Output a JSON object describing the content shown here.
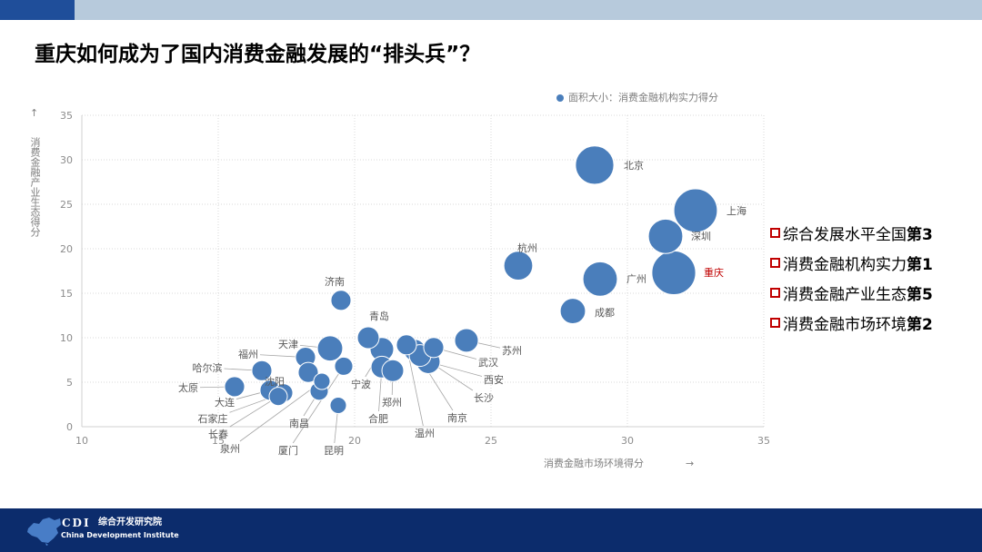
{
  "slide": {
    "title": "重庆如何成为了国内消费金融发展的“排头兵”？"
  },
  "chart_data": {
    "type": "scatter",
    "xlabel": "消费金融市场环境得分",
    "ylabel": "消费金融产业生态得分",
    "x_arrow": "→",
    "y_arrow": "↑",
    "legend_label": "面积大小：消费金融机构实力得分",
    "legend_position": "top-right",
    "xlim": [
      10,
      35
    ],
    "ylim": [
      0,
      35
    ],
    "xticks": [
      10,
      15,
      20,
      25,
      30,
      35
    ],
    "yticks": [
      0,
      5,
      10,
      15,
      20,
      25,
      30,
      35
    ],
    "grid": true,
    "points": [
      {
        "label": "北京",
        "x": 28.8,
        "y": 29.4,
        "size": 23
      },
      {
        "label": "上海",
        "x": 32.5,
        "y": 24.3,
        "size": 29.5
      },
      {
        "label": "深圳",
        "x": 31.4,
        "y": 21.4,
        "size": 18.5
      },
      {
        "label": "重庆",
        "x": 31.7,
        "y": 17.3,
        "size": 30,
        "highlight": true
      },
      {
        "label": "广州",
        "x": 29.0,
        "y": 16.6,
        "size": 18.5
      },
      {
        "label": "杭州",
        "x": 26.0,
        "y": 18.1,
        "size": 13
      },
      {
        "label": "成都",
        "x": 28.0,
        "y": 13.0,
        "size": 10
      },
      {
        "label": "济南",
        "x": 19.5,
        "y": 14.2,
        "size": 6.3
      },
      {
        "label": "苏州",
        "x": 24.1,
        "y": 9.7,
        "size": 8.7
      },
      {
        "label": "青岛",
        "x": 20.5,
        "y": 10.0,
        "size": 7.4
      },
      {
        "label": "天津",
        "x": 19.1,
        "y": 8.8,
        "size": 10
      },
      {
        "label": "福州",
        "x": 18.2,
        "y": 7.8,
        "size": 6.3
      },
      {
        "label": "哈尔滨",
        "x": 16.6,
        "y": 6.3,
        "size": 6.3
      },
      {
        "label": "太原",
        "x": 15.6,
        "y": 4.5,
        "size": 6.3
      },
      {
        "label": "沈阳",
        "x": 18.3,
        "y": 6.1,
        "size": 6.3
      },
      {
        "label": "大连",
        "x": 16.9,
        "y": 4.1,
        "size": 6.3
      },
      {
        "label": "石家庄",
        "x": 17.4,
        "y": 3.8,
        "size": 5.2
      },
      {
        "label": "长春",
        "x": 17.2,
        "y": 3.4,
        "size": 5.2
      },
      {
        "label": "泉州",
        "x": 18.8,
        "y": 5.1,
        "size": 4.2
      },
      {
        "label": "南昌",
        "x": 18.7,
        "y": 4.0,
        "size": 5.2
      },
      {
        "label": "厦门",
        "x": 19.6,
        "y": 6.8,
        "size": 5.2
      },
      {
        "label": "昆明",
        "x": 19.4,
        "y": 2.4,
        "size": 4.2
      },
      {
        "label": "宁波",
        "x": 21.0,
        "y": 8.7,
        "size": 8.7
      },
      {
        "label": "合肥",
        "x": 21.0,
        "y": 6.7,
        "size": 7.4
      },
      {
        "label": "郑州",
        "x": 21.4,
        "y": 6.3,
        "size": 7.4
      },
      {
        "label": "温州",
        "x": 21.9,
        "y": 9.2,
        "size": 6.3
      },
      {
        "label": "南京",
        "x": 22.2,
        "y": 8.6,
        "size": 7.4
      },
      {
        "label": "长沙",
        "x": 22.4,
        "y": 8.0,
        "size": 7.4
      },
      {
        "label": "西安",
        "x": 22.7,
        "y": 7.3,
        "size": 8.7
      },
      {
        "label": "武汉",
        "x": 22.9,
        "y": 8.9,
        "size": 6.3
      }
    ]
  },
  "highlights": [
    {
      "text": "综合发展水平全国",
      "rank": "第3"
    },
    {
      "text": "消费金融机构实力",
      "rank": "第1"
    },
    {
      "text": "消费金融产业生态",
      "rank": "第5"
    },
    {
      "text": "消费金融市场环境",
      "rank": "第2"
    }
  ],
  "footer": {
    "abbr": "CDI",
    "name_cn": "综合开发研究院",
    "name_en": "China Development Institute"
  },
  "icons": {
    "legend_marker": "circle-icon",
    "list_marker": "red-square-bullet-icon",
    "footer_logo": "china-map-logo-icon"
  },
  "colors": {
    "bubble": "#4A7EBB",
    "bubble_stroke": "#FFFFFF",
    "grid": "#D9D9D9",
    "axis": "#D0D0D0",
    "tick": "#8C8C8C",
    "point_label": "#595959",
    "leader": "#A6A6A6",
    "highlight_label": "#C00000",
    "list_marker": "#C00000",
    "header_dark": "#1F4E9A",
    "header_light": "#B7CADC",
    "footer": "#0C2C6C",
    "logo": "#4F86D1"
  }
}
